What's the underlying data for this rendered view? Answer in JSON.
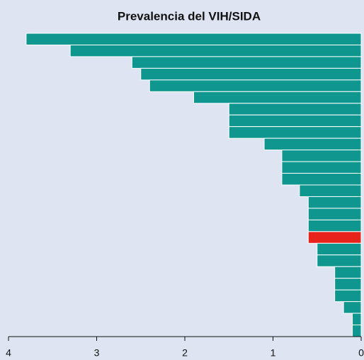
{
  "chart_data": {
    "type": "barh",
    "title": "Prevalencia del VIH/SIDA",
    "categories": [
      null,
      null,
      null,
      null,
      null,
      null,
      null,
      null,
      null,
      null,
      null,
      null,
      null,
      null,
      null,
      null,
      null,
      null,
      null,
      null,
      null,
      null,
      null,
      null,
      null,
      null
    ],
    "values": [
      3.8,
      3.3,
      2.6,
      2.5,
      2.4,
      1.9,
      1.5,
      1.5,
      1.5,
      1.1,
      0.9,
      0.9,
      0.9,
      0.7,
      0.6,
      0.6,
      0.6,
      0.6,
      0.5,
      0.5,
      0.3,
      0.3,
      0.3,
      0.2,
      0.1,
      0.1
    ],
    "colors": [
      "#0e968f",
      "#0e968f",
      "#0e968f",
      "#0e968f",
      "#0e968f",
      "#0e968f",
      "#0e968f",
      "#0e968f",
      "#0e968f",
      "#0e968f",
      "#0e968f",
      "#0e968f",
      "#0e968f",
      "#0e968f",
      "#0e968f",
      "#0e968f",
      "#0e968f",
      "#e8231b",
      "#0e968f",
      "#0e968f",
      "#0e968f",
      "#0e968f",
      "#0e968f",
      "#0e968f",
      "#0e968f",
      "#0e968f"
    ],
    "xlim": [
      4,
      0
    ],
    "xticks": [
      4,
      3,
      2,
      1,
      0
    ],
    "grid": false
  }
}
